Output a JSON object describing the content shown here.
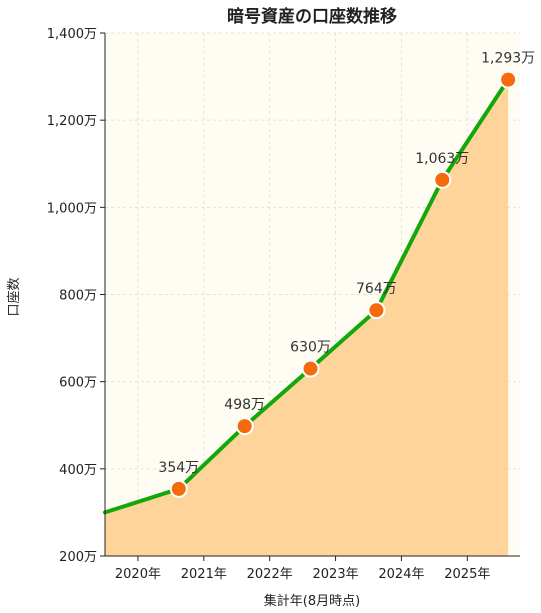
{
  "chart_data": {
    "type": "area",
    "title": "暗号資産の口座数推移",
    "xlabel": "集計年(8月時点)",
    "ylabel": "口座数",
    "unit_suffix": "万",
    "x_tick_labels": [
      "2020年",
      "2021年",
      "2022年",
      "2023年",
      "2024年",
      "2025年"
    ],
    "y_tick_labels": [
      "200万",
      "400万",
      "600万",
      "800万",
      "1,000万",
      "1,200万",
      "1,400万"
    ],
    "y_ticks": [
      200,
      400,
      600,
      800,
      1000,
      1200,
      1400
    ],
    "ylim": [
      200,
      1400
    ],
    "xlim": [
      2019.5,
      2025.8
    ],
    "points": [
      {
        "x": 2019.5,
        "y": 300
      },
      {
        "x": 2020.62,
        "y": 354
      },
      {
        "x": 2021.62,
        "y": 498
      },
      {
        "x": 2022.62,
        "y": 630
      },
      {
        "x": 2023.62,
        "y": 764
      },
      {
        "x": 2024.62,
        "y": 1063
      },
      {
        "x": 2025.62,
        "y": 1293
      }
    ],
    "data_labels": [
      {
        "x": 2020.62,
        "y": 354,
        "text": "354万"
      },
      {
        "x": 2021.62,
        "y": 498,
        "text": "498万"
      },
      {
        "x": 2022.62,
        "y": 630,
        "text": "630万"
      },
      {
        "x": 2023.62,
        "y": 764,
        "text": "764万"
      },
      {
        "x": 2024.62,
        "y": 1063,
        "text": "1,063万"
      },
      {
        "x": 2025.62,
        "y": 1293,
        "text": "1,293万"
      }
    ],
    "grid": true,
    "colors": {
      "line": "#12a80c",
      "fill": "#ffd49a",
      "marker": "#f56a0c",
      "marker_edge": "#ffffff",
      "plot_bg": "#fffcf3",
      "grid": "#e6e1d4"
    }
  }
}
